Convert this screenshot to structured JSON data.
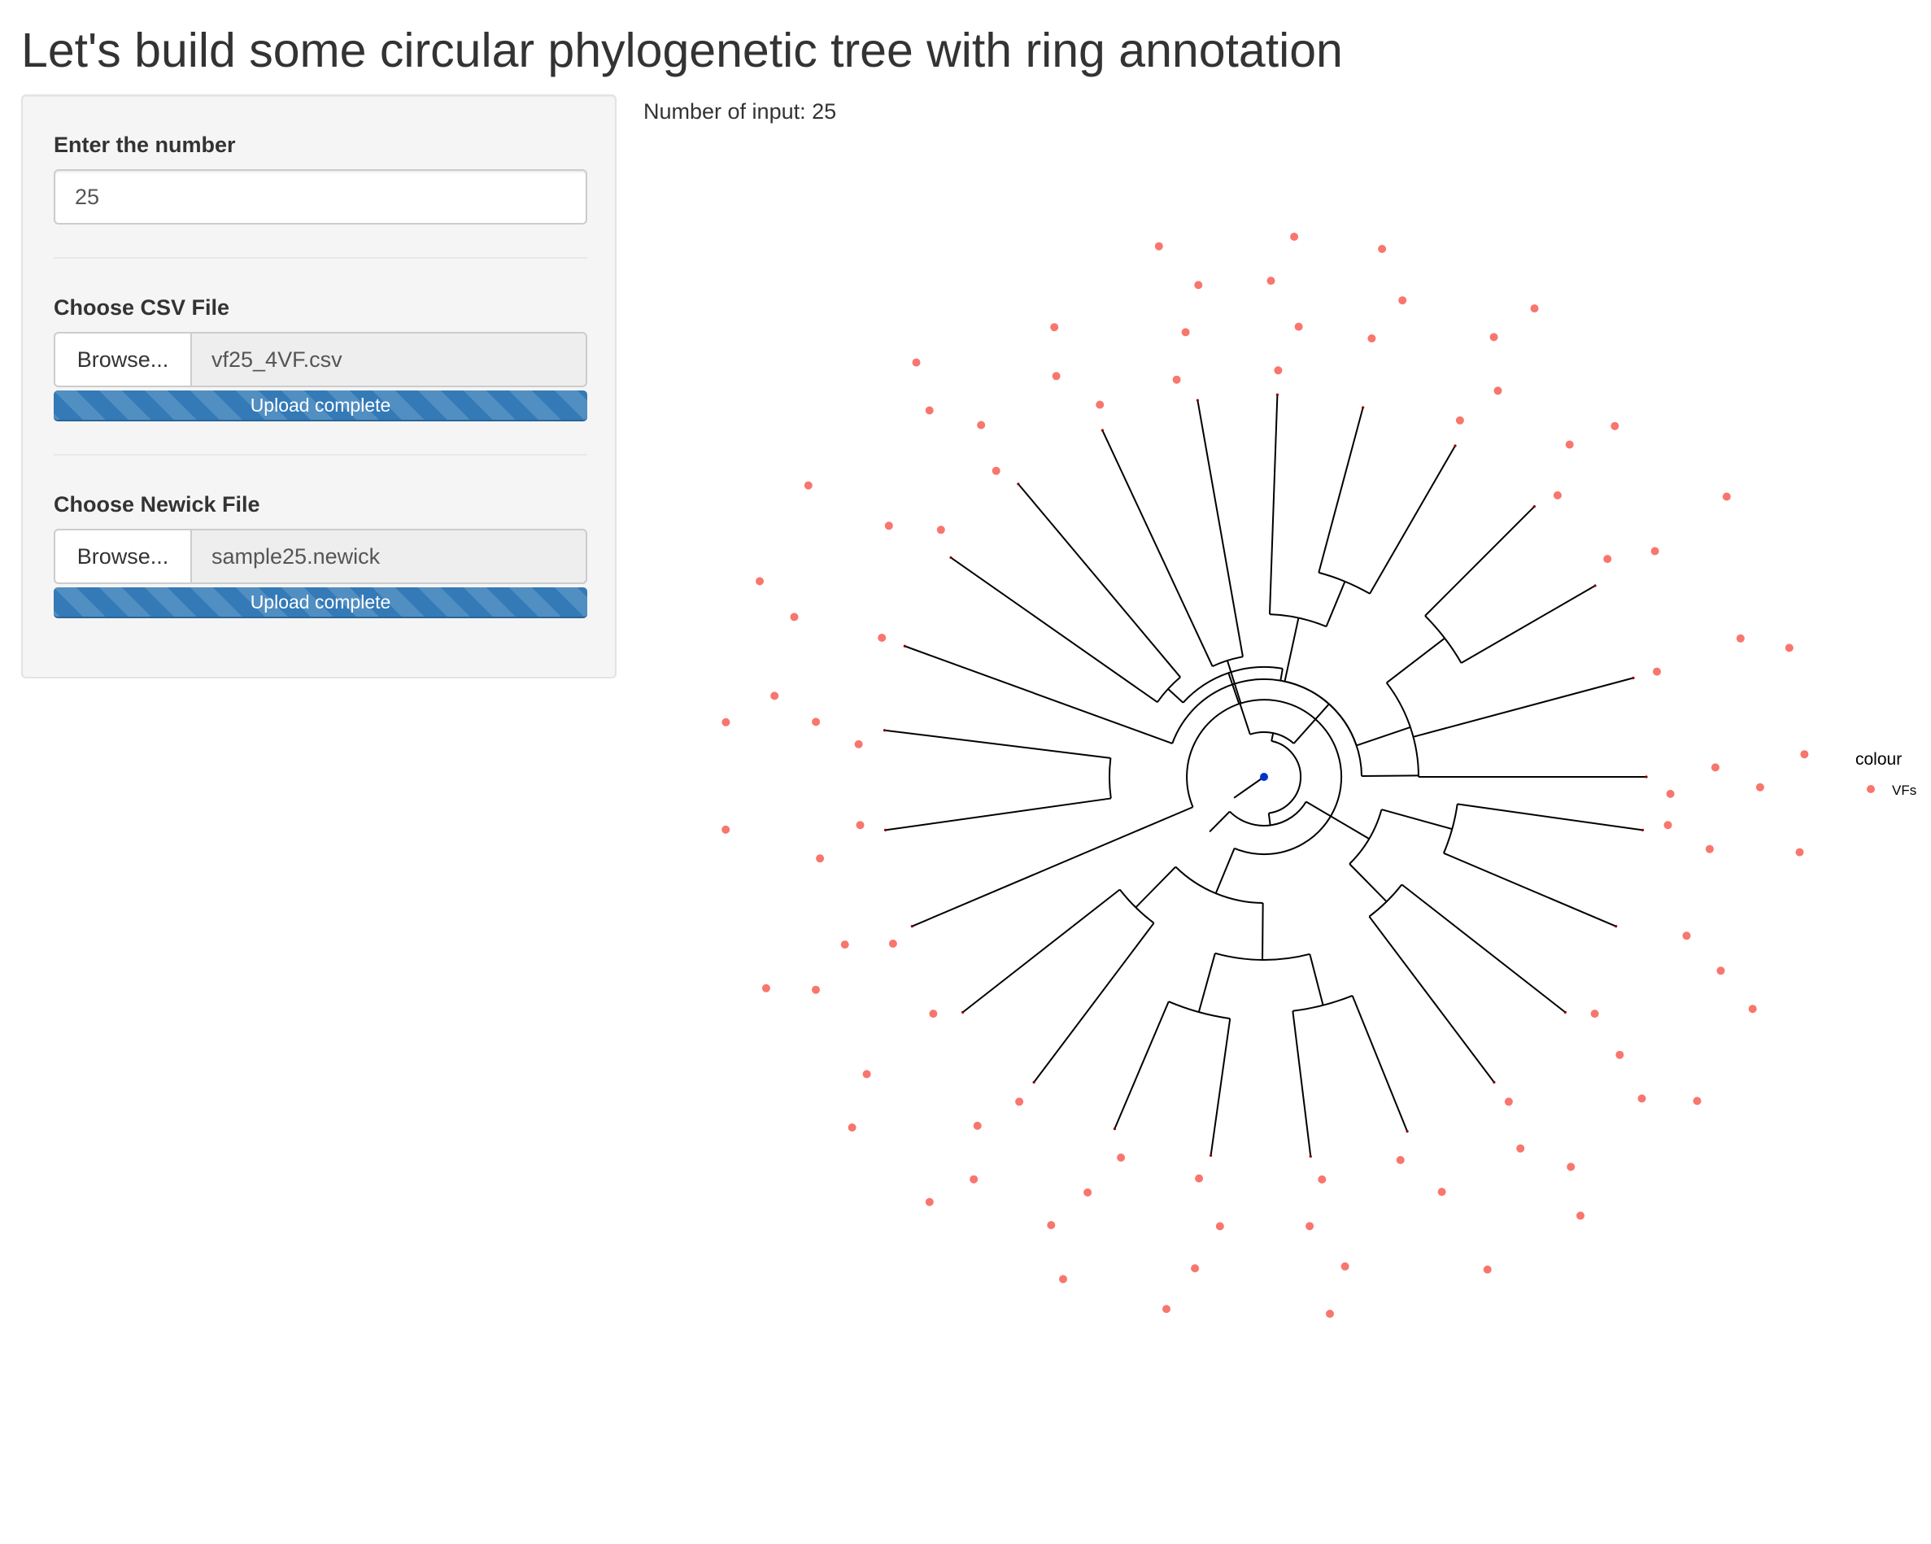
{
  "title": "Let's build some circular phylogenetic tree with ring annotation",
  "sidebar": {
    "number_label": "Enter the number",
    "number_value": "25",
    "csv_label": "Choose CSV File",
    "csv_browse": "Browse...",
    "csv_file": "vf25_4VF.csv",
    "csv_progress": "Upload complete",
    "newick_label": "Choose Newick File",
    "newick_browse": "Browse...",
    "newick_file": "sample25.newick",
    "newick_progress": "Upload complete"
  },
  "main": {
    "input_count_text": "Number of input: 25"
  },
  "plot": {
    "tip_count": 25,
    "ring_count": 4,
    "legend": {
      "title": "colour",
      "items": [
        {
          "label": "VFs",
          "color": "#f8766d"
        }
      ]
    },
    "colors": {
      "branch": "#000000",
      "annotation_point": "#f8766d",
      "root_point": "#0033cc",
      "tip_mark": "#8b0000"
    }
  }
}
